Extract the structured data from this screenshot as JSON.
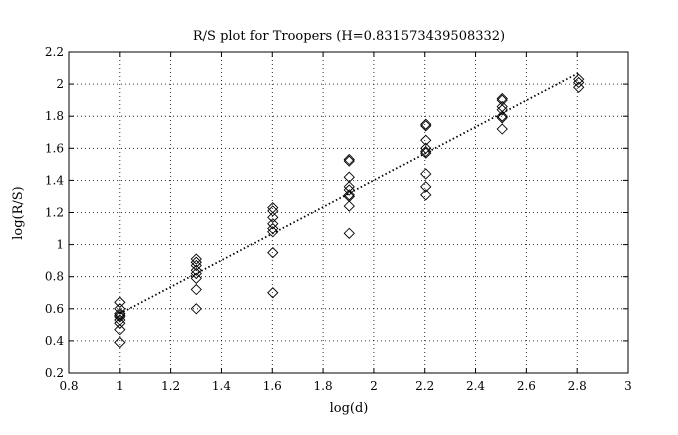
{
  "chart_data": {
    "type": "scatter",
    "title": "R/S plot for Troopers (H=0.831573439508332)",
    "xlabel": "log(d)",
    "ylabel": "log(R/S)",
    "xlim": [
      0.8,
      3
    ],
    "ylim": [
      0.2,
      2.2
    ],
    "xticks": [
      0.8,
      1,
      1.2,
      1.4,
      1.6,
      1.8,
      2,
      2.2,
      2.4,
      2.6,
      2.8,
      3
    ],
    "yticks": [
      0.2,
      0.4,
      0.6,
      0.8,
      1,
      1.2,
      1.4,
      1.6,
      1.8,
      2,
      2.2
    ],
    "xtick_labels": [
      "0.8",
      "1",
      "1.2",
      "1.4",
      "1.6",
      "1.8",
      "2",
      "2.2",
      "2.4",
      "2.6",
      "2.8",
      "3"
    ],
    "ytick_labels": [
      "0.2",
      "0.4",
      "0.6",
      "0.8",
      "1",
      "1.2",
      "1.4",
      "1.6",
      "1.8",
      "2",
      "2.2"
    ],
    "grid": true,
    "marker": "diamond",
    "series": [
      {
        "kind": "points",
        "points": [
          [
            1,
            0.64
          ],
          [
            1,
            0.6
          ],
          [
            1,
            0.57
          ],
          [
            1,
            0.56
          ],
          [
            1,
            0.55
          ],
          [
            1,
            0.53
          ],
          [
            1,
            0.51
          ],
          [
            1,
            0.47
          ],
          [
            1,
            0.39
          ],
          [
            1.301,
            0.91
          ],
          [
            1.301,
            0.89
          ],
          [
            1.301,
            0.87
          ],
          [
            1.301,
            0.84
          ],
          [
            1.301,
            0.82
          ],
          [
            1.301,
            0.79
          ],
          [
            1.301,
            0.72
          ],
          [
            1.301,
            0.6
          ],
          [
            1.602,
            1.23
          ],
          [
            1.602,
            1.21
          ],
          [
            1.602,
            1.17
          ],
          [
            1.602,
            1.13
          ],
          [
            1.602,
            1.1
          ],
          [
            1.602,
            1.08
          ],
          [
            1.602,
            0.95
          ],
          [
            1.602,
            0.7
          ],
          [
            1.903,
            1.53
          ],
          [
            1.903,
            1.52
          ],
          [
            1.903,
            1.42
          ],
          [
            1.903,
            1.36
          ],
          [
            1.903,
            1.34
          ],
          [
            1.903,
            1.31
          ],
          [
            1.903,
            1.3
          ],
          [
            1.903,
            1.24
          ],
          [
            1.903,
            1.07
          ],
          [
            2.204,
            1.75
          ],
          [
            2.204,
            1.74
          ],
          [
            2.204,
            1.65
          ],
          [
            2.204,
            1.6
          ],
          [
            2.204,
            1.58
          ],
          [
            2.204,
            1.57
          ],
          [
            2.204,
            1.44
          ],
          [
            2.204,
            1.36
          ],
          [
            2.204,
            1.31
          ],
          [
            2.505,
            1.91
          ],
          [
            2.505,
            1.9
          ],
          [
            2.505,
            1.86
          ],
          [
            2.505,
            1.84
          ],
          [
            2.505,
            1.8
          ],
          [
            2.505,
            1.79
          ],
          [
            2.505,
            1.72
          ],
          [
            2.806,
            2.03
          ],
          [
            2.806,
            2.01
          ],
          [
            2.806,
            1.98
          ]
        ]
      },
      {
        "kind": "fit-line",
        "style": "dotted",
        "points": [
          [
            1,
            0.57
          ],
          [
            2.806,
            2.07
          ]
        ]
      }
    ]
  }
}
